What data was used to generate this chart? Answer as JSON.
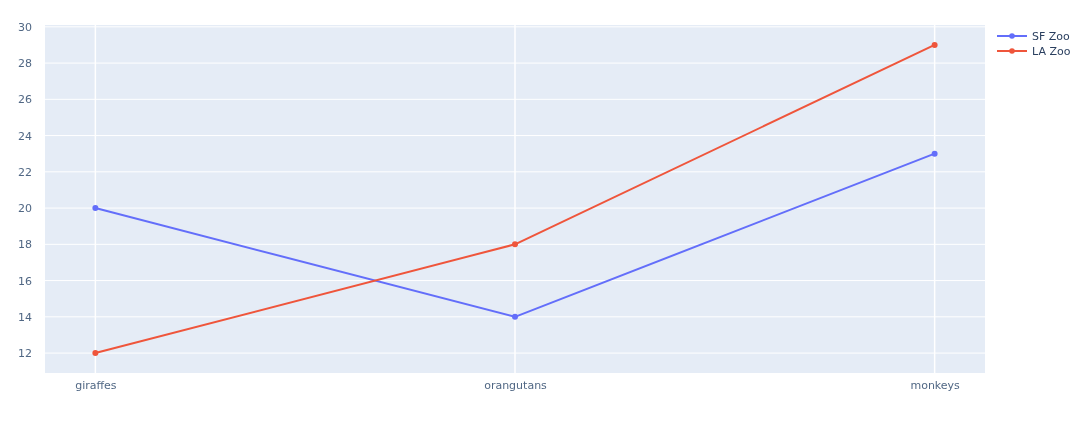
{
  "chart_data": {
    "type": "line",
    "categories": [
      "giraffes",
      "orangutans",
      "monkeys"
    ],
    "series": [
      {
        "name": "SF Zoo",
        "color": "#636efa",
        "values": [
          20,
          14,
          23
        ]
      },
      {
        "name": "LA Zoo",
        "color": "#ef553b",
        "values": [
          12,
          18,
          29
        ]
      }
    ],
    "ylim": [
      10.9,
      30.1
    ],
    "yticks": [
      12,
      14,
      16,
      18,
      20,
      22,
      24,
      26,
      28,
      30
    ],
    "grid": true,
    "legend": "top right",
    "marker": "circle",
    "line_style": "solid"
  }
}
